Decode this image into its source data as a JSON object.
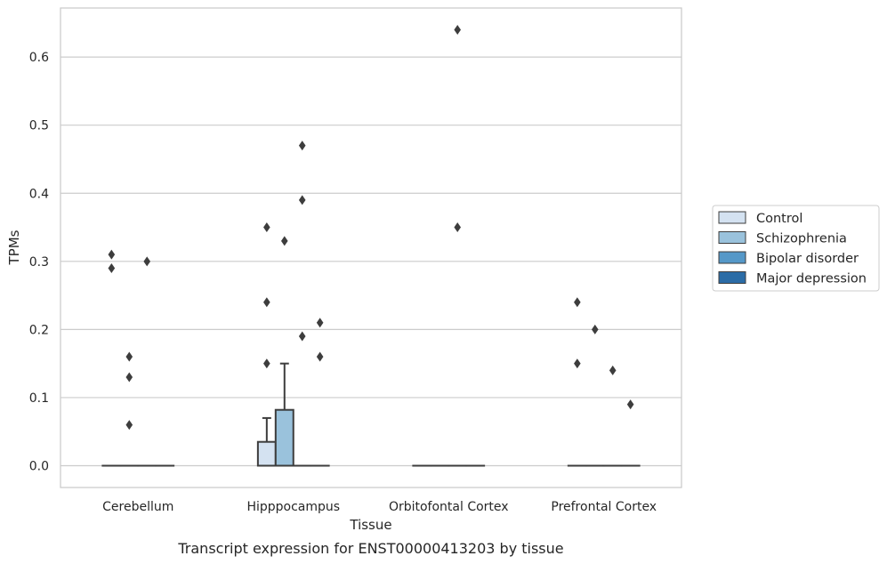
{
  "chart_data": {
    "type": "box",
    "title": "",
    "caption": "Transcript expression for ENST00000413203 by tissue",
    "xlabel": "Tissue",
    "ylabel": "TPMs",
    "ylim": [
      -0.032,
      0.672
    ],
    "yticks": [
      0.0,
      0.1,
      0.2,
      0.3,
      0.4,
      0.5,
      0.6
    ],
    "ytick_labels": [
      "0.0",
      "0.1",
      "0.2",
      "0.3",
      "0.4",
      "0.5",
      "0.6"
    ],
    "grid": true,
    "legend_position": "right",
    "categories": [
      "Cerebellum",
      "Hipppocampus",
      "Orbitofontal Cortex",
      "Prefrontal Cortex"
    ],
    "series": [
      {
        "name": "Control",
        "color": "#d4e2f1",
        "boxes": [
          {
            "q1": 0,
            "median": 0,
            "q3": 0,
            "whisker_low": 0,
            "whisker_high": 0,
            "outliers": [
              0.31,
              0.29
            ]
          },
          {
            "q1": 0,
            "median": 0,
            "q3": 0.035,
            "whisker_low": 0,
            "whisker_high": 0.07,
            "outliers": [
              0.35,
              0.24,
              0.15
            ]
          },
          {
            "q1": 0,
            "median": 0,
            "q3": 0,
            "whisker_low": 0,
            "whisker_high": 0,
            "outliers": []
          },
          {
            "q1": 0,
            "median": 0,
            "q3": 0,
            "whisker_low": 0,
            "whisker_high": 0,
            "outliers": [
              0.24,
              0.15
            ]
          }
        ]
      },
      {
        "name": "Schizophrenia",
        "color": "#9ac2dc",
        "boxes": [
          {
            "q1": 0,
            "median": 0,
            "q3": 0,
            "whisker_low": 0,
            "whisker_high": 0,
            "outliers": [
              0.16,
              0.13,
              0.06
            ]
          },
          {
            "q1": 0,
            "median": 0,
            "q3": 0.082,
            "whisker_low": 0,
            "whisker_high": 0.15,
            "outliers": [
              0.33
            ]
          },
          {
            "q1": 0,
            "median": 0,
            "q3": 0,
            "whisker_low": 0,
            "whisker_high": 0,
            "outliers": []
          },
          {
            "q1": 0,
            "median": 0,
            "q3": 0,
            "whisker_low": 0,
            "whisker_high": 0,
            "outliers": [
              0.2
            ]
          }
        ]
      },
      {
        "name": "Bipolar disorder",
        "color": "#5598c8",
        "boxes": [
          {
            "q1": 0,
            "median": 0,
            "q3": 0,
            "whisker_low": 0,
            "whisker_high": 0,
            "outliers": [
              0.3
            ]
          },
          {
            "q1": 0,
            "median": 0,
            "q3": 0,
            "whisker_low": 0,
            "whisker_high": 0,
            "outliers": [
              0.47,
              0.39,
              0.19
            ]
          },
          {
            "q1": 0,
            "median": 0,
            "q3": 0,
            "whisker_low": 0,
            "whisker_high": 0,
            "outliers": [
              0.64,
              0.35
            ]
          },
          {
            "q1": 0,
            "median": 0,
            "q3": 0,
            "whisker_low": 0,
            "whisker_high": 0,
            "outliers": [
              0.14
            ]
          }
        ]
      },
      {
        "name": "Major depression",
        "color": "#2b6ca6",
        "boxes": [
          {
            "q1": 0,
            "median": 0,
            "q3": 0,
            "whisker_low": 0,
            "whisker_high": 0,
            "outliers": []
          },
          {
            "q1": 0,
            "median": 0,
            "q3": 0,
            "whisker_low": 0,
            "whisker_high": 0,
            "outliers": [
              0.21,
              0.16
            ]
          },
          {
            "q1": 0,
            "median": 0,
            "q3": 0,
            "whisker_low": 0,
            "whisker_high": 0,
            "outliers": []
          },
          {
            "q1": 0,
            "median": 0,
            "q3": 0,
            "whisker_low": 0,
            "whisker_high": 0,
            "outliers": [
              0.09
            ]
          }
        ]
      }
    ]
  }
}
